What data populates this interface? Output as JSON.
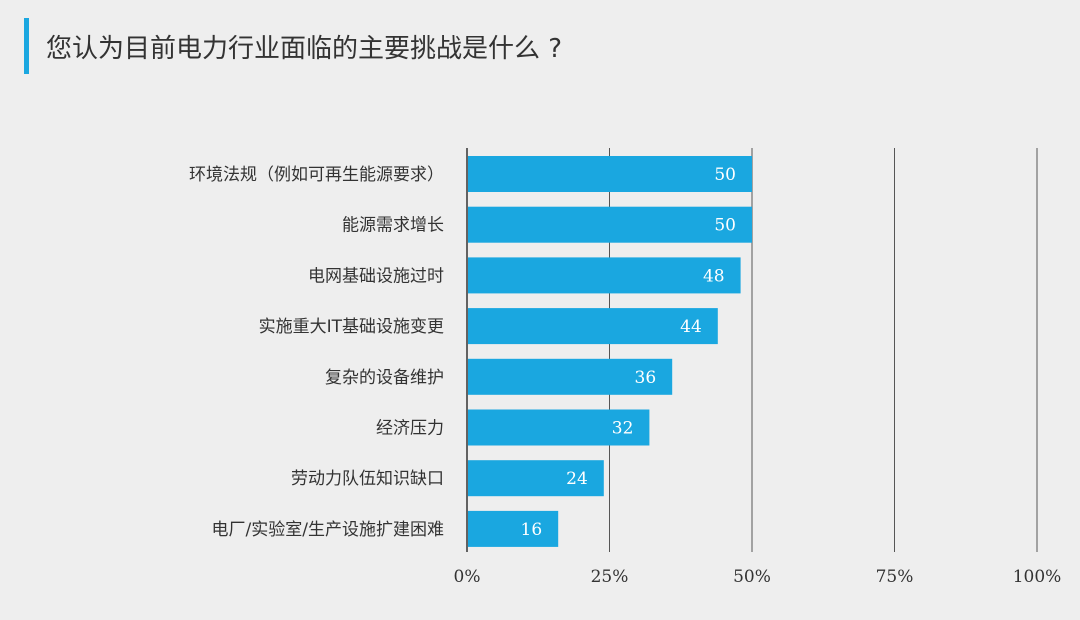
{
  "title": "您认为目前电力行业面临的主要挑战是什么 ?",
  "colors": {
    "accent": "#1aa7e0",
    "bar": "#1aa7e0",
    "grid": "#555555"
  },
  "chart_data": {
    "type": "bar",
    "orientation": "horizontal",
    "categories": [
      "环境法规（例如可再生能源要求）",
      "能源需求增长",
      "电网基础设施过时",
      "实施重大IT基础设施变更",
      "复杂的设备维护",
      "经济压力",
      "劳动力队伍知识缺口",
      "电厂/实验室/生产设施扩建困难"
    ],
    "values": [
      50,
      50,
      48,
      44,
      36,
      32,
      24,
      16
    ],
    "xlim": [
      0,
      100
    ],
    "x_ticks": [
      0,
      25,
      50,
      75,
      100
    ],
    "x_tick_labels": [
      "0%",
      "25%",
      "50%",
      "75%",
      "100%"
    ],
    "grid": true,
    "title": "您认为目前电力行业面临的主要挑战是什么 ?"
  }
}
